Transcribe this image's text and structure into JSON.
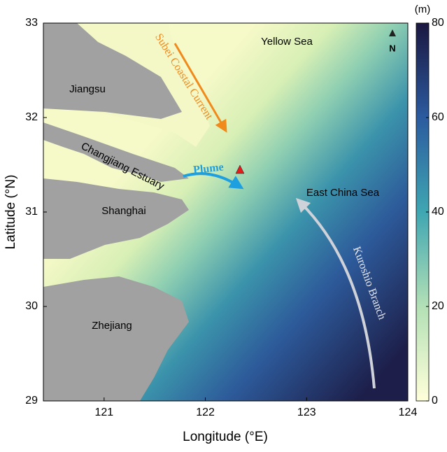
{
  "map": {
    "xlabel": "Longitude (°E)",
    "ylabel": "Latitude (°N)",
    "xlim": [
      120.4,
      124
    ],
    "xticks": [
      121,
      122,
      123,
      124
    ],
    "ylim": [
      29,
      33
    ],
    "yticks": [
      29,
      30,
      31,
      32,
      33
    ],
    "colorbar": {
      "unit": "(m)",
      "lim": [
        0,
        80
      ],
      "ticks": [
        0,
        20,
        40,
        60,
        80
      ]
    },
    "north": "N",
    "labels": [
      "Yellow Sea",
      "Jiangsu",
      "Subei Coastal Current",
      "Changjiang Estuary",
      "Plume",
      "Shanghai",
      "East China Sea",
      "Kuroshio Branch",
      "Zhejiang"
    ]
  }
}
